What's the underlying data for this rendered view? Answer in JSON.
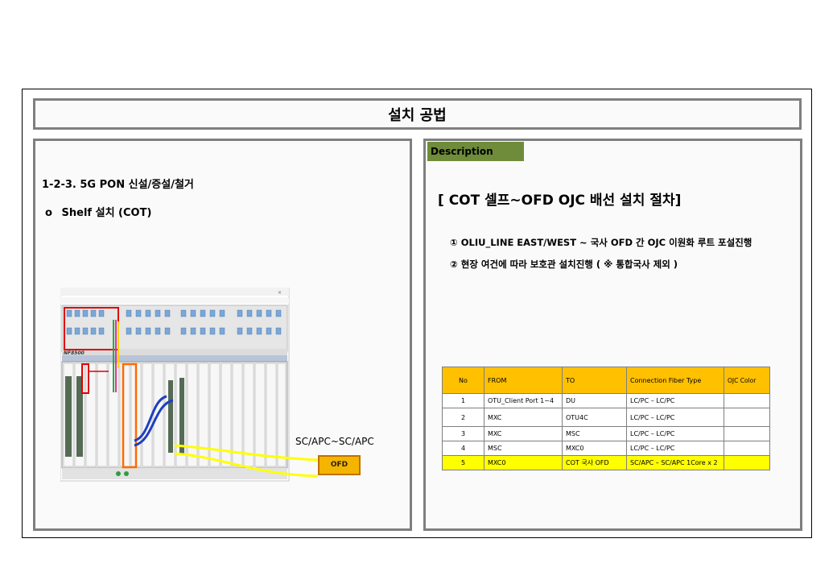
{
  "title": "설치 공법",
  "left": {
    "heading": "1-2-3. 5G PON 신설/증설/철거",
    "bullet_mark": "o",
    "bullet_text": "Shelf 설치 (COT)",
    "shelf_model": "NF8500",
    "connector_label": "SC/APC~SC/APC",
    "ofd_label": "OFD"
  },
  "right": {
    "tag": "Description",
    "procedure_title": "[ COT 셀프~OFD OJC 배선 설치 절차]",
    "steps": [
      "① OLIU_LINE EAST/WEST ~ 국사 OFD 간 OJC 이원화 루트 포설진행",
      "② 현장 여건에 따라 보호관 설치진행 ( ※ 통합국사 제외 )"
    ],
    "table": {
      "headers": [
        "No",
        "FROM",
        "TO",
        "Connection  Fiber  Type",
        "OJC Color"
      ],
      "rows": [
        [
          "1",
          "OTU_Client Port 1~4",
          "DU",
          "LC/PC – LC/PC",
          ""
        ],
        [
          "2",
          "MXC",
          "OTU4C",
          "LC/PC – LC/PC",
          ""
        ],
        [
          "3",
          "MXC",
          "MSC",
          "LC/PC – LC/PC",
          ""
        ],
        [
          "4",
          "MSC",
          "MXC0",
          "LC/PC – LC/PC",
          ""
        ],
        [
          "5",
          "MXC0",
          "COT 국사 OFD",
          "SC/APC – SC/APC 1Core x 2",
          ""
        ]
      ]
    }
  },
  "colors": {
    "header_fill": "#ffc000",
    "highlight_row": "#ffff00",
    "description_tag": "#6e8c3a",
    "red_box": "#e00000",
    "orange_box": "#ff6a00",
    "cable_yellow": "#ffff00",
    "cable_blue": "#1f3fbf"
  }
}
